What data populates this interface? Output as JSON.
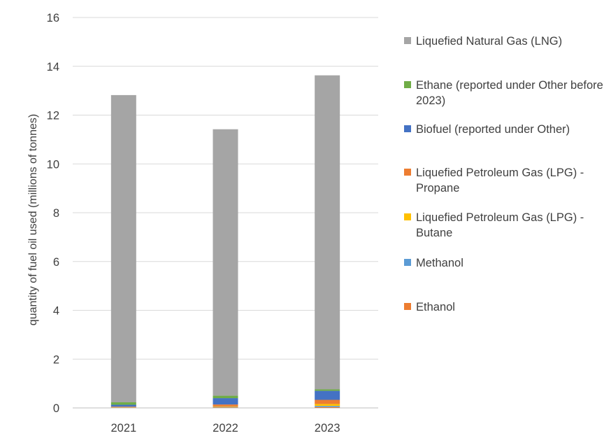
{
  "chart_data": {
    "type": "bar",
    "stacked": true,
    "title": "",
    "xlabel": "",
    "ylabel": "quantity of fuel oil used (millions of tonnes)",
    "ylim": [
      0,
      16
    ],
    "yticks": [
      0,
      2,
      4,
      6,
      8,
      10,
      12,
      14,
      16
    ],
    "grid": true,
    "legend_position": "right",
    "categories": [
      "2021",
      "2022",
      "2023"
    ],
    "series": [
      {
        "name": "Ethanol",
        "color": "#ED7D31",
        "values": [
          0.01,
          0.02,
          0.03
        ]
      },
      {
        "name": "Methanol",
        "color": "#5B9BD5",
        "values": [
          0.01,
          0.02,
          0.05
        ]
      },
      {
        "name": "Liquefied Petroleum Gas (LPG) - Butane",
        "color": "#FFC000",
        "values": [
          0.01,
          0.02,
          0.08
        ]
      },
      {
        "name": "Liquefied Petroleum Gas (LPG) - Propane",
        "color": "#ED7D31",
        "values": [
          0.02,
          0.08,
          0.17
        ]
      },
      {
        "name": "Biofuel (reported under Other)",
        "color": "#4472C4",
        "values": [
          0.08,
          0.26,
          0.37
        ]
      },
      {
        "name": "Ethane (reported under Other before 2023)",
        "color": "#70AD47",
        "values": [
          0.1,
          0.1,
          0.06
        ]
      },
      {
        "name": "Liquefied Natural Gas (LNG)",
        "color": "#A5A5A5",
        "values": [
          12.59,
          10.92,
          12.87
        ]
      }
    ]
  }
}
